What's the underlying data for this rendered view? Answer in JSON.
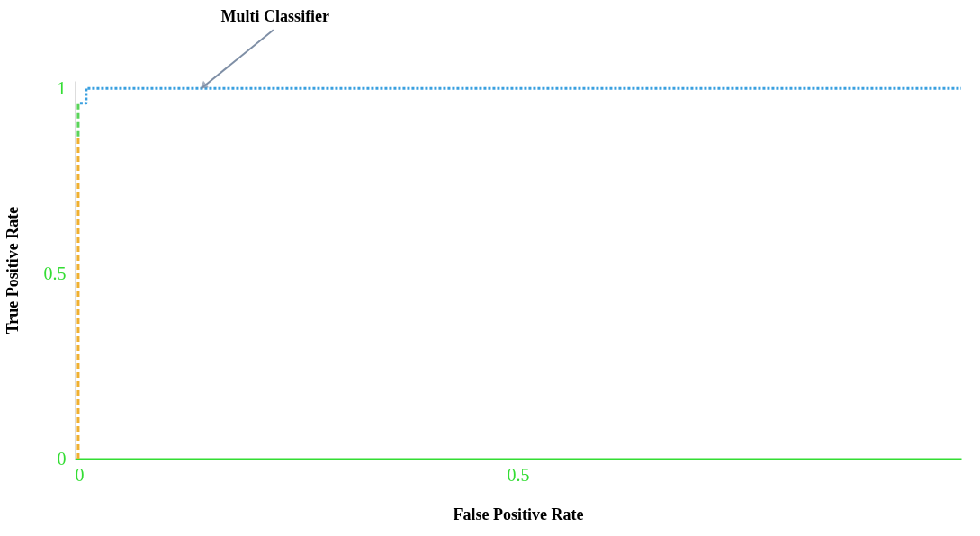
{
  "chart_data": {
    "type": "line",
    "xlabel": "False Positive Rate",
    "ylabel": "True Positive Rate",
    "xlim": [
      0,
      1
    ],
    "ylim": [
      0,
      1.02
    ],
    "xticks": [
      0,
      0.5
    ],
    "yticks": [
      0,
      0.5,
      1
    ],
    "grid": false,
    "series": [
      {
        "color": "#f0b030",
        "line_style": "dashed",
        "x": [
          0.004,
          0.004
        ],
        "values": [
          0,
          0.87
        ]
      },
      {
        "color": "#5ad45a",
        "line_style": "dashed",
        "x": [
          0.004,
          0.004,
          0.006
        ],
        "values": [
          0.87,
          0.96,
          0.96
        ]
      },
      {
        "color": "#3aa0e0",
        "line_style": "dotted",
        "x": [
          0.006,
          0.013,
          0.013,
          1
        ],
        "values": [
          0.96,
          0.96,
          1,
          1
        ]
      }
    ],
    "annotations": [
      {
        "text": "Multi Classifier",
        "x": 0.143,
        "y": 1
      }
    ]
  }
}
